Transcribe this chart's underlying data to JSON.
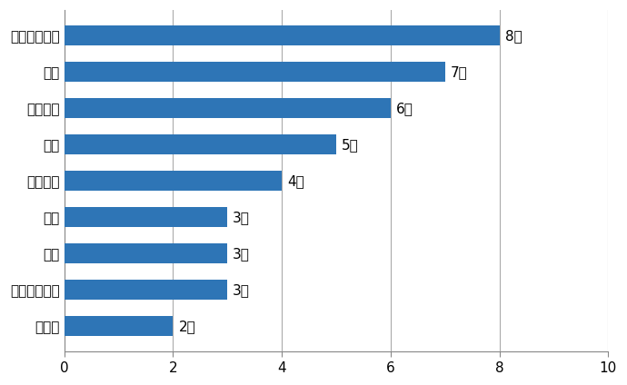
{
  "categories": [
    "看護師",
    "危険物取扱者",
    "建築",
    "介護",
    "パソコン",
    "料理",
    "教員免許",
    "土木",
    "スポーツ指導"
  ],
  "values": [
    2,
    3,
    3,
    3,
    4,
    5,
    6,
    7,
    8
  ],
  "bar_color": "#2E75B6",
  "xlim": [
    0,
    10
  ],
  "xticks": [
    0,
    2,
    4,
    6,
    8,
    10
  ],
  "grid_color": "#AAAAAA",
  "background_color": "#FFFFFF",
  "label_suffix": "人",
  "label_fontsize": 11,
  "tick_fontsize": 11,
  "bar_height": 0.55
}
